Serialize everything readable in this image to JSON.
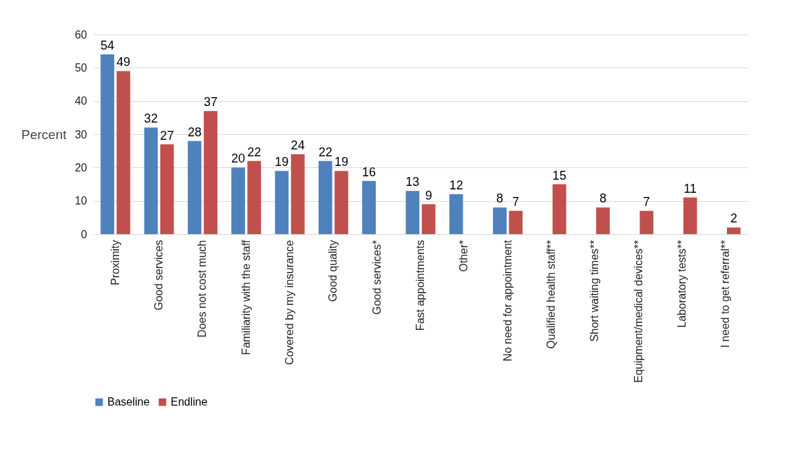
{
  "chart_data": {
    "type": "bar",
    "ylabel": "Percent",
    "categories": [
      "Proximity",
      "Good services",
      "Does not cost much",
      "Familiarity with the staff",
      "Covered by my insurance",
      "Good quality",
      "Good services*",
      "Fast appointments",
      "Other*",
      "No need for appointment",
      "Qualified health staff**",
      "Short waiting times**",
      "Equipment/medical devices**",
      "Laboratory tests**",
      "I need to get referral**"
    ],
    "series": [
      {
        "name": "Baseline",
        "color": "#4f81bd",
        "values": [
          54,
          32,
          28,
          20,
          19,
          22,
          16,
          13,
          12,
          8,
          null,
          null,
          null,
          null,
          null
        ]
      },
      {
        "name": "Endline",
        "color": "#c0504d",
        "values": [
          49,
          27,
          37,
          22,
          24,
          19,
          null,
          9,
          null,
          7,
          15,
          8,
          7,
          11,
          2
        ]
      }
    ],
    "ylim": [
      0,
      60
    ],
    "yticks": [
      0,
      10,
      20,
      30,
      40,
      50,
      60
    ],
    "grid": "y",
    "legend": "bottom",
    "data_labels": true
  }
}
